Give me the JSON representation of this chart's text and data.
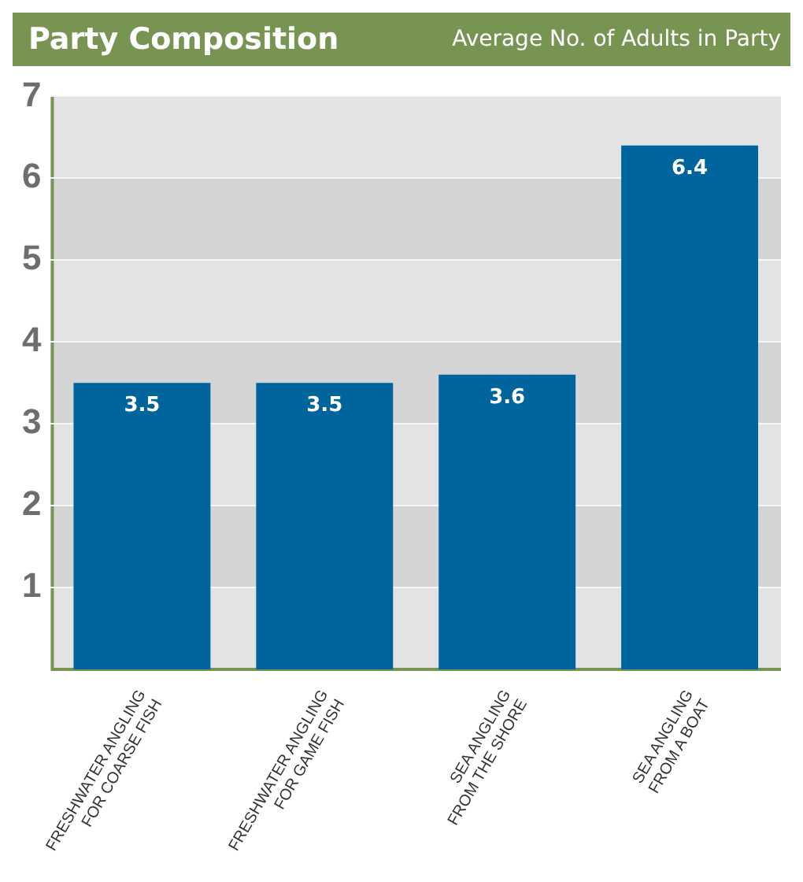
{
  "chart_data": {
    "type": "bar",
    "title": "Party Composition",
    "subtitle": "Average No. of Adults in Party",
    "categories": [
      "FRESHWATER ANGLING\nFOR COARSE FISH",
      "FRESHWATER ANGLING\nFOR GAME FISH",
      "SEA ANGLING\nFROM THE SHORE",
      "SEA ANGLING\nFROM A BOAT"
    ],
    "values": [
      3.5,
      3.5,
      3.6,
      6.4
    ],
    "color": "#00659c",
    "ylim": [
      0,
      7
    ],
    "yticks": [
      1,
      2,
      3,
      4,
      5,
      6,
      7
    ],
    "grid": true,
    "data_labels": true
  }
}
